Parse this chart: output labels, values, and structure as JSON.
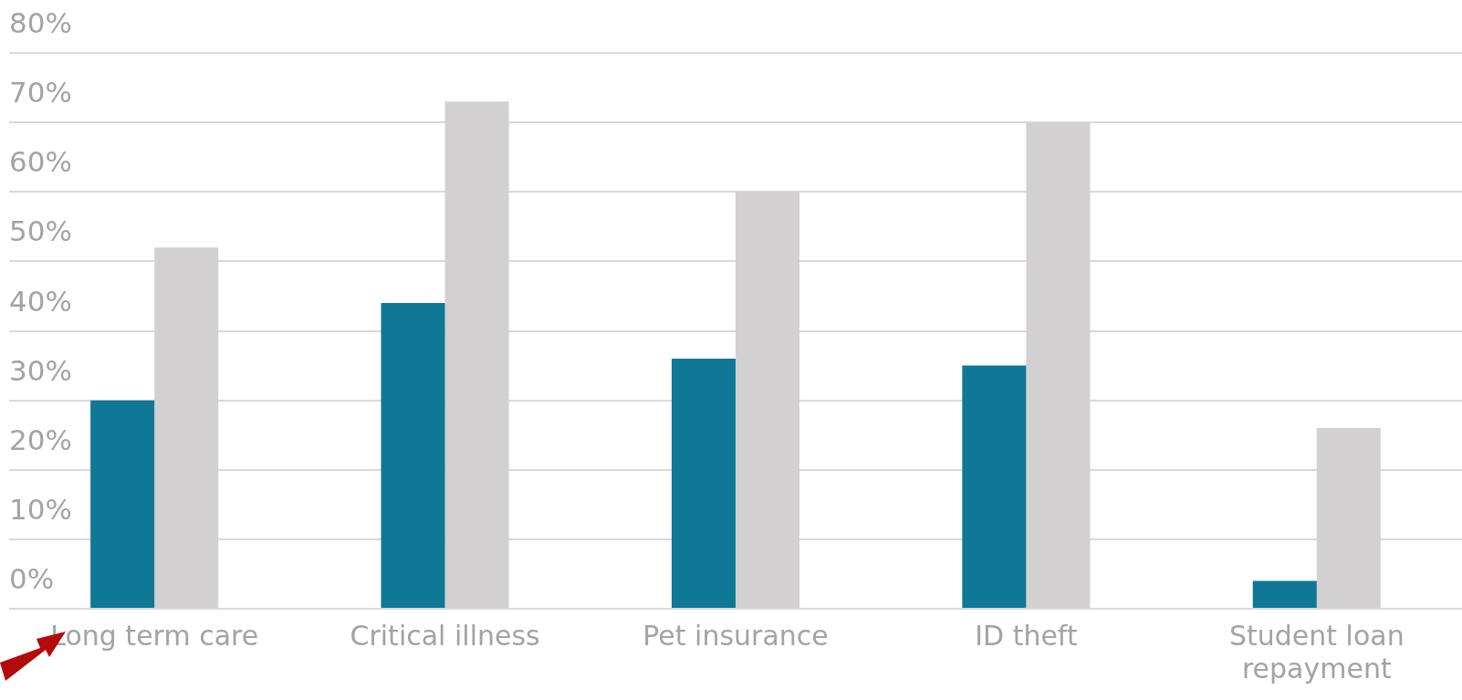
{
  "chart_data": {
    "type": "bar",
    "categories": [
      "Long term care",
      "Critical illness",
      "Pet insurance",
      "ID theft",
      "Student loan repayment"
    ],
    "series": [
      {
        "color": "#0e7896",
        "values": [
          30,
          44,
          36,
          35,
          4
        ]
      },
      {
        "color": "#d3d0d1",
        "values": [
          52,
          73,
          60,
          70,
          26
        ]
      }
    ],
    "ylim": [
      0,
      80
    ],
    "yticks": [
      {
        "value": 0,
        "label": "0%"
      },
      {
        "value": 10,
        "label": "10%"
      },
      {
        "value": 20,
        "label": "20%"
      },
      {
        "value": 30,
        "label": "30%"
      },
      {
        "value": 40,
        "label": "40%"
      },
      {
        "value": 50,
        "label": "50%"
      },
      {
        "value": 60,
        "label": "60%"
      },
      {
        "value": 70,
        "label": "70%"
      },
      {
        "value": 80,
        "label": "80%"
      }
    ],
    "grid": "y",
    "legend": false
  }
}
